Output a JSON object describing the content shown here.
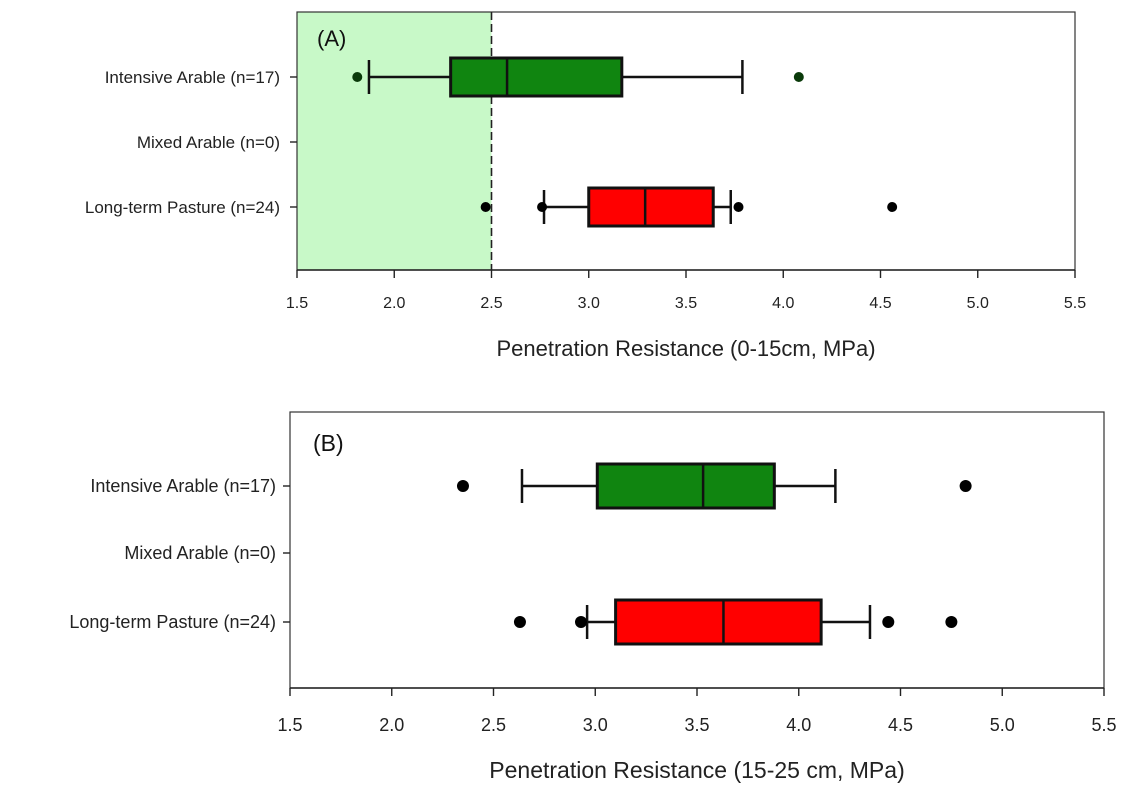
{
  "chart_data": [
    {
      "type": "box",
      "panel_label": "(A)",
      "xlabel": "Penetration Resistance (0-15cm, MPa)",
      "xlim": [
        1.5,
        5.5
      ],
      "xticks": [
        "1.5",
        "2.0",
        "2.5",
        "3.0",
        "3.5",
        "4.0",
        "4.5",
        "5.0",
        "5.5"
      ],
      "categories": [
        "Intensive Arable (n=17)",
        "Mixed Arable (n=0)",
        "Long-term Pasture (n=24)"
      ],
      "threshold": {
        "x_min": 1.5,
        "x_max": 2.5,
        "line_x": 2.5,
        "shade_color": "#c8f9c8"
      },
      "boxes": [
        {
          "category": "Intensive Arable (n=17)",
          "whisker_low": 1.87,
          "q1": 2.29,
          "median": 2.58,
          "q3": 3.17,
          "whisker_high": 3.79,
          "outliers": [
            1.81,
            4.08
          ],
          "color": "#108510"
        },
        {
          "category": "Long-term Pasture (n=24)",
          "whisker_low": 2.77,
          "q1": 3.0,
          "median": 3.29,
          "q3": 3.64,
          "whisker_high": 3.73,
          "outliers": [
            2.47,
            2.76,
            3.77,
            4.56
          ],
          "color": "#ff0000"
        }
      ]
    },
    {
      "type": "box",
      "panel_label": "(B)",
      "xlabel": "Penetration Resistance (15-25 cm, MPa)",
      "xlim": [
        1.5,
        5.5
      ],
      "xticks": [
        "1.5",
        "2.0",
        "2.5",
        "3.0",
        "3.5",
        "4.0",
        "4.5",
        "5.0",
        "5.5"
      ],
      "categories": [
        "Intensive Arable (n=17)",
        "Mixed Arable (n=0)",
        "Long-term Pasture (n=24)"
      ],
      "boxes": [
        {
          "category": "Intensive Arable (n=17)",
          "whisker_low": 2.64,
          "q1": 3.01,
          "median": 3.53,
          "q3": 3.88,
          "whisker_high": 4.18,
          "outliers": [
            2.35,
            4.82
          ],
          "color": "#108510"
        },
        {
          "category": "Long-term Pasture (n=24)",
          "whisker_low": 2.96,
          "q1": 3.1,
          "median": 3.63,
          "q3": 4.11,
          "whisker_high": 4.35,
          "outliers": [
            2.63,
            2.93,
            4.44,
            4.75
          ],
          "color": "#ff0000"
        }
      ]
    }
  ]
}
